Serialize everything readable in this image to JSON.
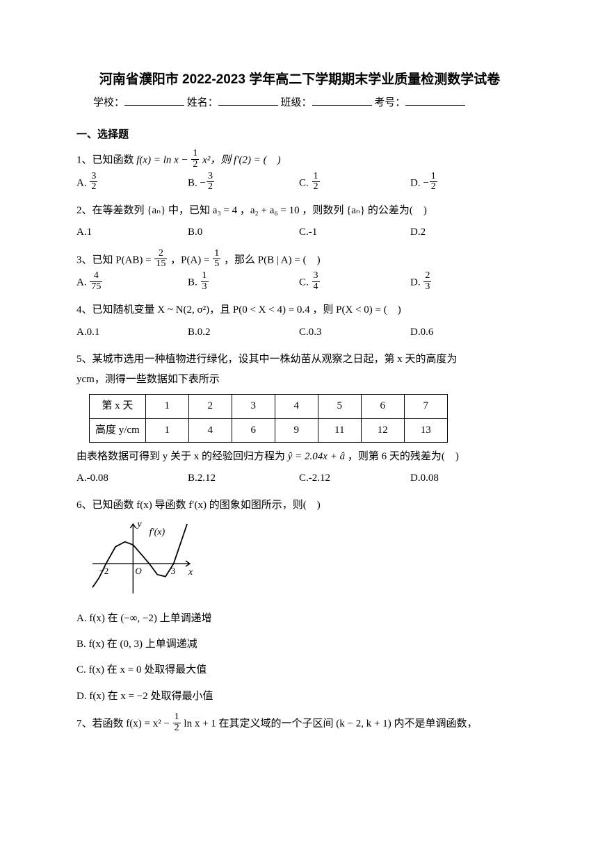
{
  "page": {
    "title": "河南省濮阳市 2022-2023 学年高二下学期期末学业质量检测数学试卷",
    "form_labels": {
      "school": "学校：",
      "name_": "姓名：",
      "class_": "班级：",
      "exam_no": "考号："
    },
    "section1": "一、选择题"
  },
  "q1": {
    "stem_a": "1、已知函数 ",
    "fx": "f(x) = ln x − ",
    "frac": {
      "num": "1",
      "den": "2"
    },
    "stem_b": "x²，则 f′(2) = (　)",
    "opts": {
      "A": "A.",
      "A_frac": {
        "num": "3",
        "den": "2"
      },
      "B": "B. −",
      "B_frac": {
        "num": "3",
        "den": "2"
      },
      "C": "C.",
      "C_frac": {
        "num": "1",
        "den": "2"
      },
      "D": "D. −",
      "D_frac": {
        "num": "1",
        "den": "2"
      }
    }
  },
  "q2": {
    "stem": "2、在等差数列 {aₙ} 中，已知 a₃ = 4 ，a₂ + a₆ = 10 ，则数列 {aₙ} 的公差为(　)",
    "opts": {
      "A": "A.1",
      "B": "B.0",
      "C": "C.-1",
      "D": "D.2"
    }
  },
  "q3": {
    "stem_a": "3、已知 P(AB) = ",
    "f1": {
      "num": "2",
      "den": "15"
    },
    "stem_b": "，P(A) = ",
    "f2": {
      "num": "1",
      "den": "5"
    },
    "stem_c": "，那么 P(B | A) = (　)",
    "opts": {
      "A": "A.",
      "A_frac": {
        "num": "4",
        "den": "75"
      },
      "B": "B.",
      "B_frac": {
        "num": "1",
        "den": "3"
      },
      "C": "C.",
      "C_frac": {
        "num": "3",
        "den": "4"
      },
      "D": "D.",
      "D_frac": {
        "num": "2",
        "den": "3"
      }
    }
  },
  "q4": {
    "stem": "4、已知随机变量 X ~ N(2, σ²)，且 P(0 < X < 4) = 0.4 ，则 P(X < 0) = (　)",
    "opts": {
      "A": "A.0.1",
      "B": "B.0.2",
      "C": "C.0.3",
      "D": "D.0.6"
    }
  },
  "q5": {
    "stem1": "5、某城市选用一种植物进行绿化，设其中一株幼苗从观察之日起，第 x 天的高度为",
    "stem2": "ycm，测得一些数据如下表所示",
    "table": {
      "header": [
        "第 x 天",
        "1",
        "2",
        "3",
        "4",
        "5",
        "6",
        "7"
      ],
      "row": [
        "高度 y/cm",
        "1",
        "4",
        "6",
        "9",
        "11",
        "12",
        "13"
      ]
    },
    "stem3a": "由表格数据可得到 y 关于 x 的经验回归方程为 ",
    "eq": "ŷ = 2.04x + â",
    "stem3b": "，则第 6 天的残差为(　)",
    "opts": {
      "A": "A.-0.08",
      "B": "B.2.12",
      "C": "C.-2.12",
      "D": "D.0.08"
    }
  },
  "q6": {
    "stem": "6、已知函数 f(x) 导函数 f′(x) 的图象如图所示，则(　)",
    "graph": {
      "width": 150,
      "height": 110,
      "axis_color": "#000000",
      "curve_color": "#000000",
      "labels": {
        "y": "y",
        "x": "x",
        "fn": "f′(x)",
        "neg2": "−2",
        "zero": "O",
        "three": "3"
      },
      "x_range": [
        -3,
        4.2
      ],
      "y_range": [
        -1.5,
        2.0
      ],
      "curve_points": [
        [
          -3,
          -1.2
        ],
        [
          -2.5,
          -0.7
        ],
        [
          -2,
          0
        ],
        [
          -1.3,
          0.85
        ],
        [
          -0.6,
          1.1
        ],
        [
          0,
          0.95
        ],
        [
          0.7,
          0.4
        ],
        [
          1.2,
          0
        ],
        [
          1.8,
          -0.55
        ],
        [
          2.4,
          -0.65
        ],
        [
          3,
          0
        ],
        [
          3.6,
          1.2
        ],
        [
          4.0,
          2.0
        ]
      ]
    },
    "opts": {
      "A": "A. f(x) 在 (−∞, −2) 上单调递增",
      "B": "B. f(x) 在 (0, 3) 上单调递减",
      "C": "C. f(x) 在 x = 0 处取得最大值",
      "D": "D. f(x) 在 x = −2 处取得最小值"
    }
  },
  "q7": {
    "stem_a": "7、若函数 f(x) = x² − ",
    "frac": {
      "num": "1",
      "den": "2"
    },
    "stem_b": " ln x + 1 在其定义域的一个子区间 (k − 2, k + 1) 内不是单调函数，"
  }
}
